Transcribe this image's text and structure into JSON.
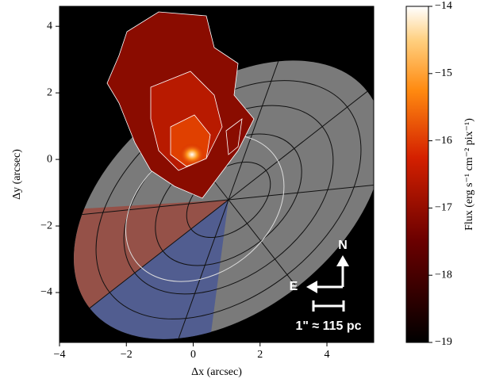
{
  "chart_data": {
    "type": "image",
    "xlabel": "Δx (arcsec)",
    "ylabel": "Δy (arcsec)",
    "xlim": [
      -4,
      5.4
    ],
    "ylim": [
      -5.5,
      4.6
    ],
    "xticks": [
      {
        "value": -4,
        "label": "−4"
      },
      {
        "value": -2,
        "label": "−2"
      },
      0,
      2,
      4
    ],
    "yticks": [
      {
        "value": -4,
        "label": "−4"
      },
      {
        "value": -2,
        "label": "−2"
      },
      0,
      2,
      4
    ],
    "colorbar": {
      "label": "Flux (erg s⁻¹ cm⁻² pix⁻¹)",
      "clim": [
        -19,
        -14
      ],
      "ticks": [
        {
          "value": -19,
          "label": "−19"
        },
        {
          "value": -18,
          "label": "−18"
        },
        {
          "value": -17,
          "label": "−17"
        },
        {
          "value": -16,
          "label": "−16"
        },
        {
          "value": -15,
          "label": "−15"
        },
        {
          "value": -14,
          "label": "−14"
        }
      ]
    },
    "annotations": {
      "north": "N",
      "east": "E",
      "scale": "1\" ≈ 115 pc"
    }
  }
}
